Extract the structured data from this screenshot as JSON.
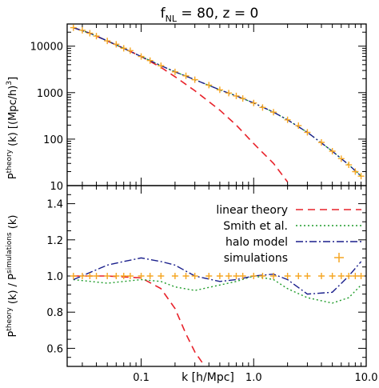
{
  "title": {
    "prefix": "f",
    "sub": "NL",
    "rest": " = 80, z = 0"
  },
  "x_axis": {
    "label": "k  [h/Mpc]",
    "scale": "log",
    "range": [
      0.022,
      10.0
    ],
    "major_ticks": [
      0.1,
      1.0,
      10.0
    ],
    "tick_labels": [
      "0.1",
      "1.0",
      "10.0"
    ]
  },
  "top_panel": {
    "ylabel_main": "P",
    "ylabel_sup": "theory",
    "ylabel_rest": " (k)  [(Mpc/h)",
    "ylabel_sup2": "3",
    "ylabel_end": "]",
    "y_scale": "log",
    "y_range": [
      10,
      30000
    ],
    "major_ticks": [
      10,
      100,
      1000,
      10000
    ],
    "tick_labels": [
      "10",
      "100",
      "1000",
      "10000"
    ]
  },
  "bottom_panel": {
    "ylabel_a": "P",
    "ylabel_a_sup": "theory",
    "ylabel_b": " (k) / P",
    "ylabel_b_sup": "simulations",
    "ylabel_c": " (k)",
    "y_scale": "linear",
    "y_range": [
      0.5,
      1.5
    ],
    "major_ticks": [
      0.6,
      0.8,
      1.0,
      1.2,
      1.4
    ],
    "tick_labels": [
      "0.6",
      "0.8",
      "1.0",
      "1.2",
      "1.4"
    ]
  },
  "legend": {
    "position": "top-right of lower panel",
    "items": [
      {
        "label": "linear theory",
        "color": "#e8222a",
        "style": "dashed"
      },
      {
        "label": "Smith et al.",
        "color": "#1f9c2a",
        "style": "dotted"
      },
      {
        "label": "halo model",
        "color": "#1a1f8c",
        "style": "dash-dot"
      },
      {
        "label": "simulations",
        "color": "#f5a623",
        "style": "plus"
      }
    ]
  },
  "chart_data": [
    {
      "type": "line",
      "panel": "top",
      "series": [
        {
          "name": "linear theory",
          "color": "#e8222a",
          "x": [
            0.025,
            0.035,
            0.05,
            0.07,
            0.1,
            0.15,
            0.2,
            0.3,
            0.5,
            0.7,
            1.0,
            1.5,
            2.0
          ],
          "y": [
            25000,
            19000,
            13000,
            9000,
            6000,
            3500,
            2200,
            1100,
            420,
            200,
            80,
            30,
            12
          ]
        },
        {
          "name": "Smith et al.",
          "color": "#1f9c2a",
          "x": [
            0.025,
            0.035,
            0.05,
            0.07,
            0.1,
            0.15,
            0.2,
            0.3,
            0.5,
            0.7,
            1.0,
            1.5,
            2.0,
            3.0,
            5.0,
            7.0,
            9.0
          ],
          "y": [
            25000,
            19000,
            13000,
            9000,
            6000,
            3800,
            2800,
            1900,
            1150,
            850,
            600,
            380,
            260,
            140,
            55,
            28,
            16
          ]
        },
        {
          "name": "halo model",
          "color": "#1a1f8c",
          "x": [
            0.025,
            0.035,
            0.05,
            0.07,
            0.1,
            0.15,
            0.2,
            0.3,
            0.5,
            0.7,
            1.0,
            1.5,
            2.0,
            3.0,
            5.0,
            7.0,
            9.0
          ],
          "y": [
            25000,
            19000,
            13000,
            9000,
            6000,
            3800,
            2800,
            1900,
            1150,
            850,
            600,
            380,
            260,
            140,
            55,
            28,
            16
          ]
        },
        {
          "name": "simulations",
          "color": "#f5a623",
          "x": [
            0.025,
            0.03,
            0.035,
            0.04,
            0.05,
            0.06,
            0.07,
            0.08,
            0.1,
            0.12,
            0.15,
            0.2,
            0.25,
            0.3,
            0.4,
            0.5,
            0.6,
            0.7,
            0.8,
            1.0,
            1.2,
            1.5,
            2.0,
            2.5,
            3.0,
            4.0,
            5.0,
            6.0,
            7.0,
            8.0,
            9.0
          ],
          "y": [
            25000,
            22000,
            19000,
            16500,
            13000,
            11000,
            9000,
            8000,
            6000,
            4900,
            3800,
            2800,
            2300,
            1900,
            1450,
            1150,
            980,
            850,
            750,
            600,
            480,
            380,
            260,
            195,
            140,
            85,
            55,
            38,
            28,
            20,
            16
          ]
        }
      ]
    },
    {
      "type": "line",
      "panel": "bottom",
      "series": [
        {
          "name": "linear theory",
          "color": "#e8222a",
          "x": [
            0.025,
            0.05,
            0.1,
            0.15,
            0.2,
            0.25,
            0.3,
            0.35,
            0.4
          ],
          "y": [
            1.0,
            1.0,
            0.99,
            0.93,
            0.82,
            0.68,
            0.58,
            0.52,
            0.46
          ]
        },
        {
          "name": "Smith et al.",
          "color": "#1f9c2a",
          "x": [
            0.025,
            0.05,
            0.1,
            0.15,
            0.2,
            0.3,
            0.5,
            0.7,
            1.0,
            1.5,
            2.0,
            3.0,
            5.0,
            7.0,
            9.0
          ],
          "y": [
            0.98,
            0.96,
            0.98,
            0.97,
            0.94,
            0.92,
            0.95,
            0.97,
            1.0,
            0.98,
            0.93,
            0.88,
            0.85,
            0.88,
            0.95
          ]
        },
        {
          "name": "halo model",
          "color": "#1a1f8c",
          "x": [
            0.025,
            0.05,
            0.07,
            0.1,
            0.15,
            0.2,
            0.3,
            0.5,
            0.7,
            1.0,
            1.5,
            2.0,
            3.0,
            5.0,
            7.0,
            9.0
          ],
          "y": [
            0.98,
            1.06,
            1.08,
            1.1,
            1.08,
            1.06,
            1.0,
            0.97,
            0.98,
            1.0,
            1.01,
            0.98,
            0.9,
            0.91,
            1.0,
            1.08
          ]
        },
        {
          "name": "simulations",
          "color": "#f5a623",
          "x": [
            0.025,
            0.03,
            0.035,
            0.04,
            0.05,
            0.06,
            0.07,
            0.08,
            0.1,
            0.12,
            0.15,
            0.2,
            0.25,
            0.3,
            0.4,
            0.5,
            0.6,
            0.7,
            0.8,
            1.0,
            1.2,
            1.5,
            2.0,
            2.5,
            3.0,
            4.0,
            5.0,
            6.0,
            7.0,
            8.0,
            9.0
          ],
          "y": [
            1.0,
            1.0,
            1.0,
            1.0,
            1.0,
            1.0,
            1.0,
            1.0,
            1.0,
            1.0,
            1.0,
            1.0,
            1.0,
            1.0,
            1.0,
            1.0,
            1.0,
            1.0,
            1.0,
            1.0,
            1.0,
            1.0,
            1.0,
            1.0,
            1.0,
            1.0,
            1.0,
            1.0,
            1.0,
            1.0,
            1.0
          ]
        }
      ]
    }
  ]
}
